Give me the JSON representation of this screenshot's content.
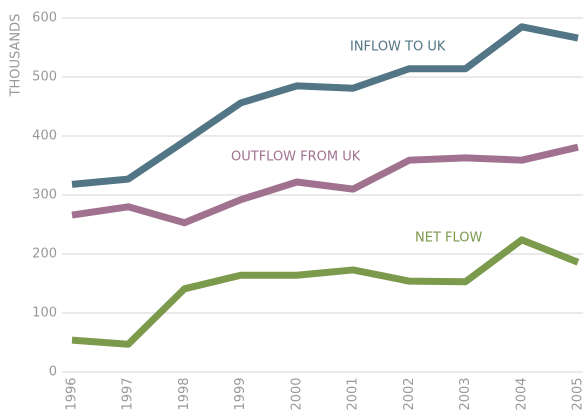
{
  "chart_data": {
    "type": "line",
    "y_label": "THOUSANDS",
    "categories": [
      "1996",
      "1997",
      "1998",
      "1999",
      "2000",
      "2001",
      "2002",
      "2003",
      "2004",
      "2005"
    ],
    "series": [
      {
        "name": "INFLOW TO UK",
        "color": "#527685",
        "values": [
          318,
          327,
          391,
          456,
          485,
          481,
          514,
          514,
          585,
          566
        ]
      },
      {
        "name": "OUTFLOW FROM UK",
        "color": "#a17290",
        "values": [
          266,
          280,
          253,
          292,
          322,
          310,
          359,
          363,
          359,
          381
        ]
      },
      {
        "name": "NET FLOW",
        "color": "#7b9a4c",
        "values": [
          54,
          47,
          141,
          164,
          164,
          173,
          154,
          153,
          224,
          186
        ]
      }
    ],
    "ylim": [
      0,
      600
    ],
    "yticks": [
      0,
      100,
      200,
      300,
      400,
      500,
      600
    ],
    "grid": true
  }
}
